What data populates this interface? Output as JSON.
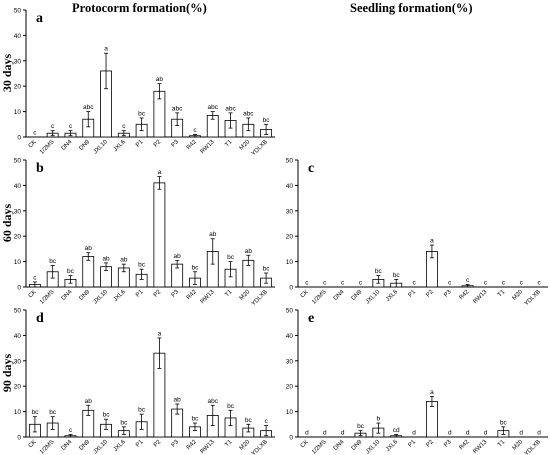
{
  "column_titles": [
    "Protocorm formation(%)",
    "Seedling formation(%)"
  ],
  "row_labels": [
    "30 days",
    "60 days",
    "90 days"
  ],
  "chart_data": [
    {
      "type": "bar",
      "panel": "a",
      "ylim": [
        0,
        50
      ],
      "yticks": [
        0,
        10,
        20,
        30,
        40,
        50
      ],
      "categories": [
        "CK",
        "1/2MS",
        "DN4",
        "DN9",
        "JXL10",
        "JXL6",
        "P1",
        "P2",
        "P3",
        "R42",
        "RW13",
        "T1",
        "M20",
        "YDLXB"
      ],
      "values": [
        0,
        1.5,
        1.5,
        7,
        26,
        1.5,
        5,
        18,
        7,
        0.5,
        8.5,
        6.5,
        5,
        3
      ],
      "errors": [
        0,
        1,
        1,
        3,
        7,
        1,
        2.5,
        3,
        2.5,
        0.5,
        1.5,
        3,
        2.5,
        2
      ],
      "letters": [
        "c",
        "c",
        "c",
        "abc",
        "a",
        "c",
        "bc",
        "ab",
        "abc",
        "c",
        "abc",
        "abc",
        "abc",
        "bc"
      ]
    },
    {
      "type": "bar",
      "panel": "b",
      "ylim": [
        0,
        50
      ],
      "yticks": [
        0,
        10,
        20,
        30,
        40,
        50
      ],
      "categories": [
        "CK",
        "1/2MS",
        "DN4",
        "DN9",
        "JXL10",
        "JXL6",
        "P1",
        "P2",
        "P3",
        "R42",
        "RW13",
        "T1",
        "M20",
        "YDLXB"
      ],
      "values": [
        1,
        6,
        3,
        12,
        8,
        7.5,
        5,
        41,
        9,
        3.5,
        14,
        7,
        10.5,
        3.5
      ],
      "errors": [
        1,
        2.5,
        1.5,
        1.5,
        1.5,
        1.5,
        2,
        2.5,
        1.5,
        2.5,
        5,
        3,
        2,
        2
      ],
      "letters": [
        "c",
        "bc",
        "bc",
        "ab",
        "ab",
        "ab",
        "bc",
        "a",
        "ab",
        "bc",
        "ab",
        "bc",
        "ab",
        "bc"
      ]
    },
    {
      "type": "bar",
      "panel": "c",
      "ylim": [
        0,
        50
      ],
      "yticks": [
        0,
        10,
        20,
        30,
        40,
        50
      ],
      "categories": [
        "CK",
        "1/2MS",
        "DN4",
        "DN9",
        "JXL10",
        "JXL6",
        "P1",
        "P2",
        "P3",
        "R42",
        "RW13",
        "T1",
        "M20",
        "YDLXB"
      ],
      "values": [
        0,
        0,
        0,
        0,
        3,
        1.5,
        0,
        14,
        0,
        0.5,
        0,
        0,
        0,
        0
      ],
      "errors": [
        0,
        0,
        0,
        0,
        1.5,
        1.5,
        0,
        2.5,
        0,
        0.5,
        0,
        0,
        0,
        0
      ],
      "letters": [
        "c",
        "c",
        "c",
        "c",
        "bc",
        "bc",
        "c",
        "a",
        "c",
        "c",
        "c",
        "c",
        "c",
        "c"
      ]
    },
    {
      "type": "bar",
      "panel": "d",
      "ylim": [
        0,
        50
      ],
      "yticks": [
        0,
        10,
        20,
        30,
        40,
        50
      ],
      "categories": [
        "CK",
        "1/2MS",
        "DN4",
        "DN9",
        "JXL10",
        "JXL6",
        "P1",
        "P2",
        "P3",
        "R42",
        "RW13",
        "T1",
        "M20",
        "YDLXB"
      ],
      "values": [
        5,
        5.5,
        0.5,
        10.5,
        5,
        2.5,
        6,
        33,
        11,
        4,
        8.5,
        7.5,
        3.5,
        2.5
      ],
      "errors": [
        3,
        2.5,
        0.5,
        2,
        2,
        1.5,
        3,
        6,
        2,
        1.5,
        4,
        3,
        1.5,
        2
      ],
      "letters": [
        "bc",
        "bc",
        "c",
        "ab",
        "bc",
        "bc",
        "bc",
        "a",
        "ab",
        "bc",
        "abc",
        "bc",
        "bc",
        "c"
      ]
    },
    {
      "type": "bar",
      "panel": "e",
      "ylim": [
        0,
        50
      ],
      "yticks": [
        0,
        10,
        20,
        30,
        40,
        50
      ],
      "categories": [
        "CK",
        "1/2MS",
        "DN4",
        "DN9",
        "JXL10",
        "JXL6",
        "P1",
        "P2",
        "P3",
        "R42",
        "RW13",
        "T1",
        "M20",
        "YDLXB"
      ],
      "values": [
        0,
        0,
        0,
        1.5,
        3.5,
        0.5,
        0,
        14,
        0,
        0,
        0,
        2.5,
        0,
        0
      ],
      "errors": [
        0,
        0,
        0,
        1,
        2,
        0.5,
        0,
        2,
        0,
        0,
        0,
        1.5,
        0,
        0
      ],
      "letters": [
        "d",
        "d",
        "d",
        "bc",
        "b",
        "cd",
        "d",
        "a",
        "d",
        "d",
        "d",
        "bc",
        "d",
        "d"
      ]
    }
  ]
}
